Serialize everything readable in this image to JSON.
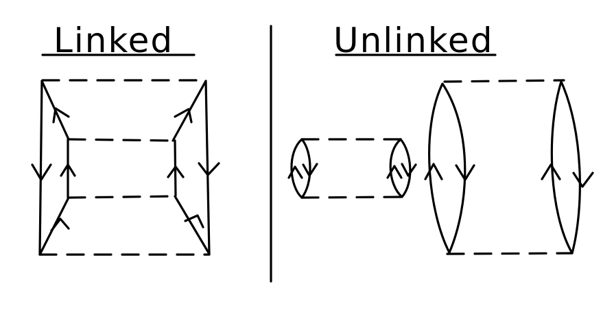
{
  "panels": {
    "left": {
      "title": "Linked"
    },
    "right": {
      "title": "Unlinked"
    }
  }
}
